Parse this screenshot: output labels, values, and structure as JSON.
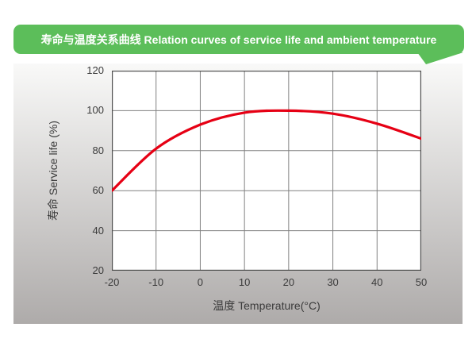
{
  "header": {
    "title": "寿命与温度关系曲线 Relation curves of service life and ambient temperature",
    "bg_color": "#5cbe5a",
    "text_color": "#ffffff"
  },
  "panel": {
    "bg_top": "#f9f9f8",
    "bg_bottom": "#aeabaa"
  },
  "chart_data": {
    "type": "line",
    "title": "寿命与温度关系曲线 Relation curves of service life and ambient temperature",
    "xlabel": "温度 Temperature(°C)",
    "ylabel": "寿命 Service life (%)",
    "x": [
      -20,
      -10,
      0,
      10,
      20,
      30,
      40,
      50
    ],
    "series": [
      {
        "name": "service-life",
        "color": "#e60014",
        "values": [
          60,
          81,
          93,
          99,
          100,
          98.5,
          93.5,
          86
        ]
      }
    ],
    "xlim": [
      -20,
      50
    ],
    "ylim": [
      20,
      120
    ],
    "x_ticks": [
      -20,
      -10,
      0,
      10,
      20,
      30,
      40,
      50
    ],
    "y_ticks": [
      120,
      100,
      80,
      60,
      40,
      20
    ],
    "grid": true,
    "grid_color": "#808080",
    "axis_color": "#4d4d4d",
    "plot_bg": "#ffffff",
    "legend": "none"
  }
}
